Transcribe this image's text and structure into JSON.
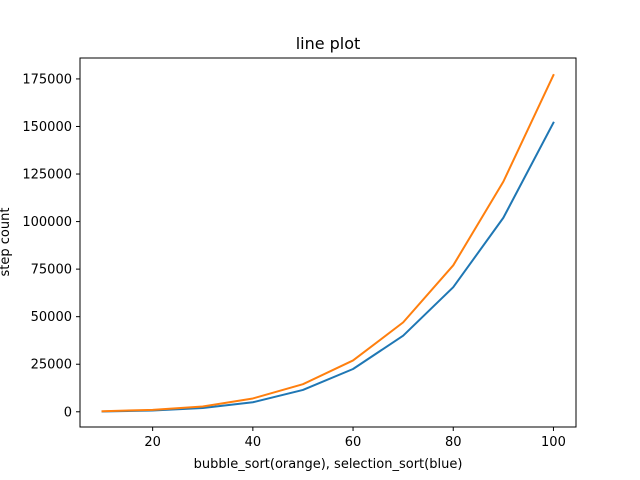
{
  "chart_data": {
    "type": "line",
    "title": "line plot",
    "xlabel": "bubble_sort(orange), selection_sort(blue)",
    "ylabel": "step count",
    "x": [
      10,
      20,
      30,
      40,
      50,
      60,
      70,
      80,
      90,
      100
    ],
    "xlim": [
      5.5,
      104.5
    ],
    "ylim": [
      -8000,
      186000
    ],
    "xticks": [
      20,
      40,
      60,
      80,
      100
    ],
    "xtick_labels": [
      "20",
      "40",
      "60",
      "80",
      "100"
    ],
    "yticks": [
      0,
      25000,
      50000,
      75000,
      100000,
      125000,
      150000,
      175000
    ],
    "ytick_labels": [
      "0",
      "25000",
      "50000",
      "75000",
      "100000",
      "125000",
      "150000",
      "175000"
    ],
    "grid": false,
    "series": [
      {
        "color": "#1f77b4",
        "values": [
          150,
          700,
          2000,
          5000,
          11500,
          22500,
          40000,
          65500,
          102000,
          152000
        ]
      },
      {
        "color": "#ff7f0e",
        "values": [
          300,
          1000,
          2800,
          7000,
          14500,
          27000,
          47000,
          77000,
          121000,
          177000
        ]
      }
    ]
  }
}
